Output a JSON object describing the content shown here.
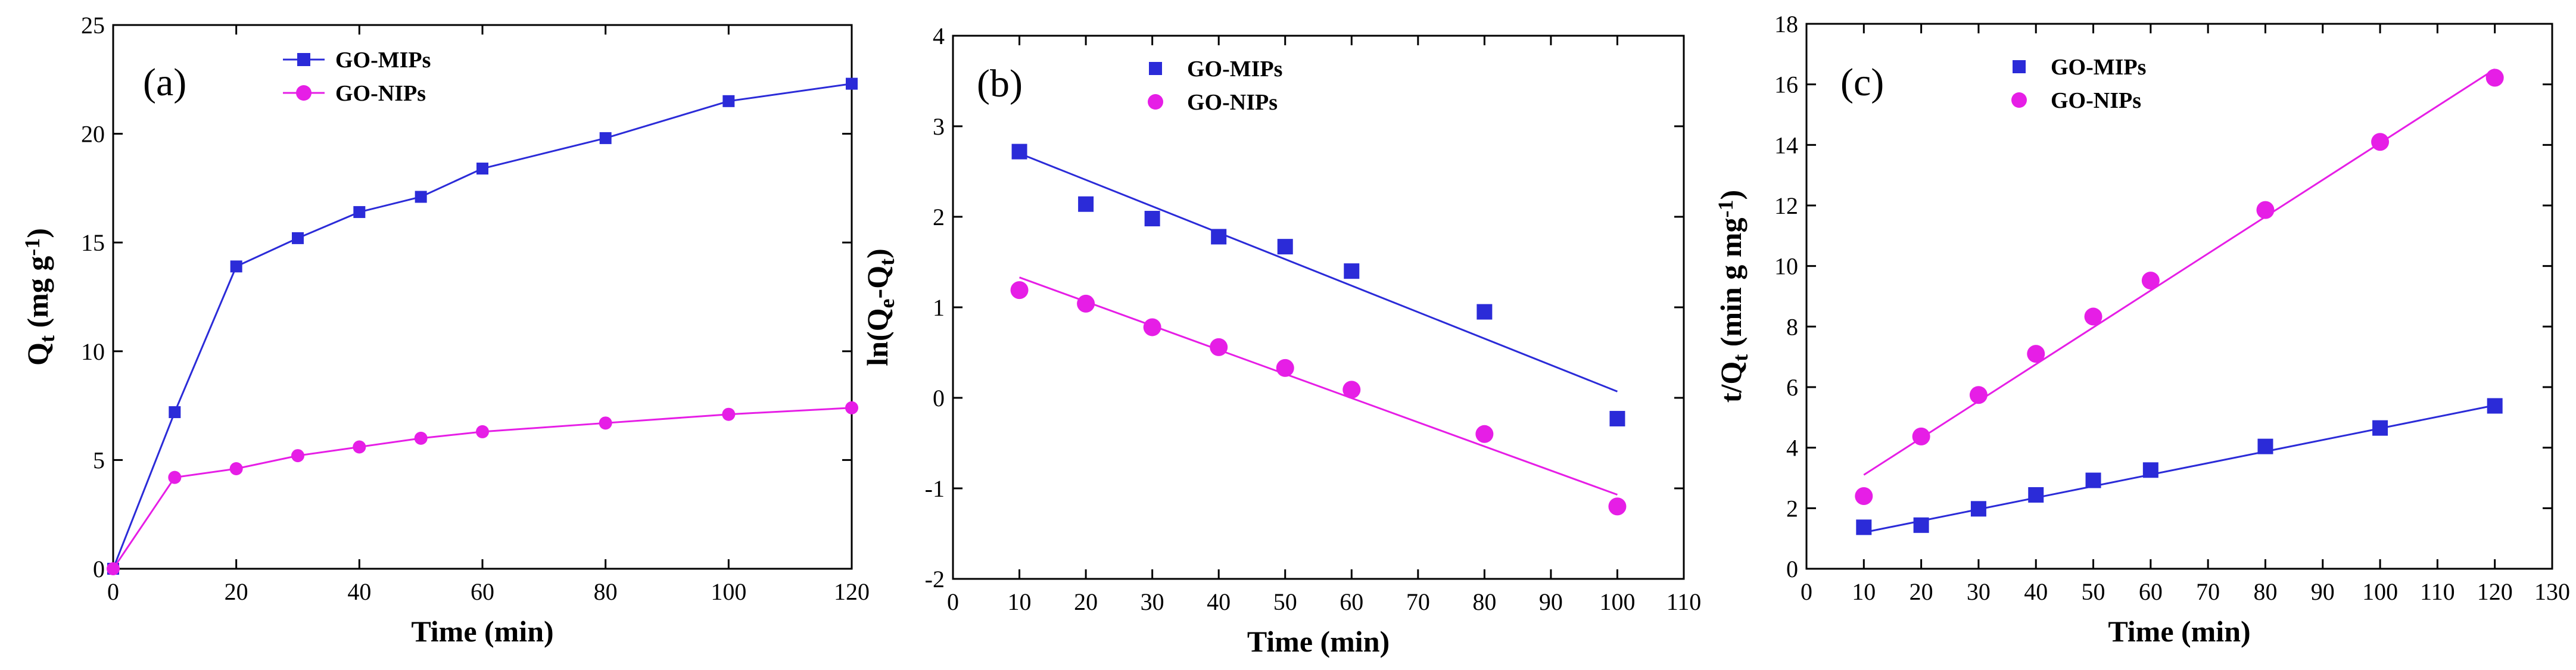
{
  "colors": {
    "blue": "#2B2BD8",
    "magenta": "#E61EE6"
  },
  "chart_data": [
    {
      "type": "line",
      "panel_label": "(a)",
      "xlabel": "Time (min)",
      "ylabel": {
        "main": "Q",
        "sub": "t",
        "rest": " (mg g",
        "sup": "-1",
        "end": ")"
      },
      "xlim": [
        0,
        120
      ],
      "ylim": [
        0,
        25
      ],
      "xticks": [
        0,
        20,
        40,
        60,
        80,
        100,
        120
      ],
      "yticks": [
        0,
        5,
        10,
        15,
        20,
        25
      ],
      "legend_position": "top-left",
      "series": [
        {
          "name": "GO-MIPs",
          "color": "#2B2BD8",
          "marker": "square",
          "line": "connect",
          "x": [
            0,
            10,
            20,
            30,
            40,
            50,
            60,
            80,
            100,
            120
          ],
          "y": [
            0,
            7.2,
            13.9,
            15.2,
            16.4,
            17.1,
            18.4,
            19.8,
            21.5,
            22.3
          ]
        },
        {
          "name": "GO-NIPs",
          "color": "#E61EE6",
          "marker": "circle",
          "line": "connect",
          "x": [
            0,
            10,
            20,
            30,
            40,
            50,
            60,
            80,
            100,
            120
          ],
          "y": [
            0,
            4.2,
            4.6,
            5.2,
            5.6,
            6.0,
            6.3,
            6.7,
            7.1,
            7.4
          ]
        }
      ]
    },
    {
      "type": "scatter",
      "panel_label": "(b)",
      "xlabel": "Time (min)",
      "ylabel": {
        "main": "ln(Q",
        "sub": "e",
        "rest": "-Q",
        "sub2": "t",
        "end": ")"
      },
      "xlim": [
        0,
        110
      ],
      "ylim": [
        -2,
        4
      ],
      "xticks": [
        0,
        10,
        20,
        30,
        40,
        50,
        60,
        70,
        80,
        90,
        100,
        110
      ],
      "yticks": [
        -2,
        -1,
        0,
        1,
        2,
        3,
        4
      ],
      "legend_position": "top-left",
      "series": [
        {
          "name": "GO-MIPs",
          "color": "#2B2BD8",
          "marker": "square",
          "line": "fit",
          "x": [
            10,
            20,
            30,
            40,
            50,
            60,
            80,
            100
          ],
          "y": [
            2.72,
            2.14,
            1.98,
            1.78,
            1.67,
            1.4,
            0.95,
            -0.23
          ],
          "fit": {
            "x": [
              10,
              100
            ],
            "y": [
              2.7,
              0.07
            ]
          }
        },
        {
          "name": "GO-NIPs",
          "color": "#E61EE6",
          "marker": "circle",
          "line": "fit",
          "x": [
            10,
            20,
            30,
            40,
            50,
            60,
            80,
            100
          ],
          "y": [
            1.19,
            1.04,
            0.78,
            0.56,
            0.33,
            0.09,
            -0.4,
            -1.2
          ],
          "fit": {
            "x": [
              10,
              100
            ],
            "y": [
              1.33,
              -1.07
            ]
          }
        }
      ]
    },
    {
      "type": "scatter",
      "panel_label": "(c)",
      "xlabel": "Time (min)",
      "ylabel": {
        "main": "t/Q",
        "sub": "t",
        "rest": "  (min g mg",
        "sup": "-1",
        "end": ")"
      },
      "xlim": [
        0,
        130
      ],
      "ylim": [
        0,
        18
      ],
      "xticks": [
        0,
        10,
        20,
        30,
        40,
        50,
        60,
        70,
        80,
        90,
        100,
        110,
        120,
        130
      ],
      "yticks": [
        0,
        2,
        4,
        6,
        8,
        10,
        12,
        14,
        16,
        18
      ],
      "legend_position": "top-left",
      "series": [
        {
          "name": "GO-MIPs",
          "color": "#2B2BD8",
          "marker": "square",
          "line": "fit",
          "x": [
            10,
            20,
            30,
            40,
            50,
            60,
            80,
            100,
            120
          ],
          "y": [
            1.37,
            1.44,
            1.98,
            2.44,
            2.92,
            3.26,
            4.04,
            4.65,
            5.38
          ],
          "fit": {
            "x": [
              10,
              120
            ],
            "y": [
              1.2,
              5.4
            ]
          }
        },
        {
          "name": "GO-NIPs",
          "color": "#E61EE6",
          "marker": "circle",
          "line": "fit",
          "x": [
            10,
            20,
            30,
            40,
            50,
            60,
            80,
            100,
            120
          ],
          "y": [
            2.4,
            4.37,
            5.74,
            7.1,
            8.33,
            9.52,
            11.85,
            14.1,
            16.22
          ],
          "fit": {
            "x": [
              10,
              120
            ],
            "y": [
              3.1,
              16.5
            ]
          }
        }
      ]
    }
  ]
}
